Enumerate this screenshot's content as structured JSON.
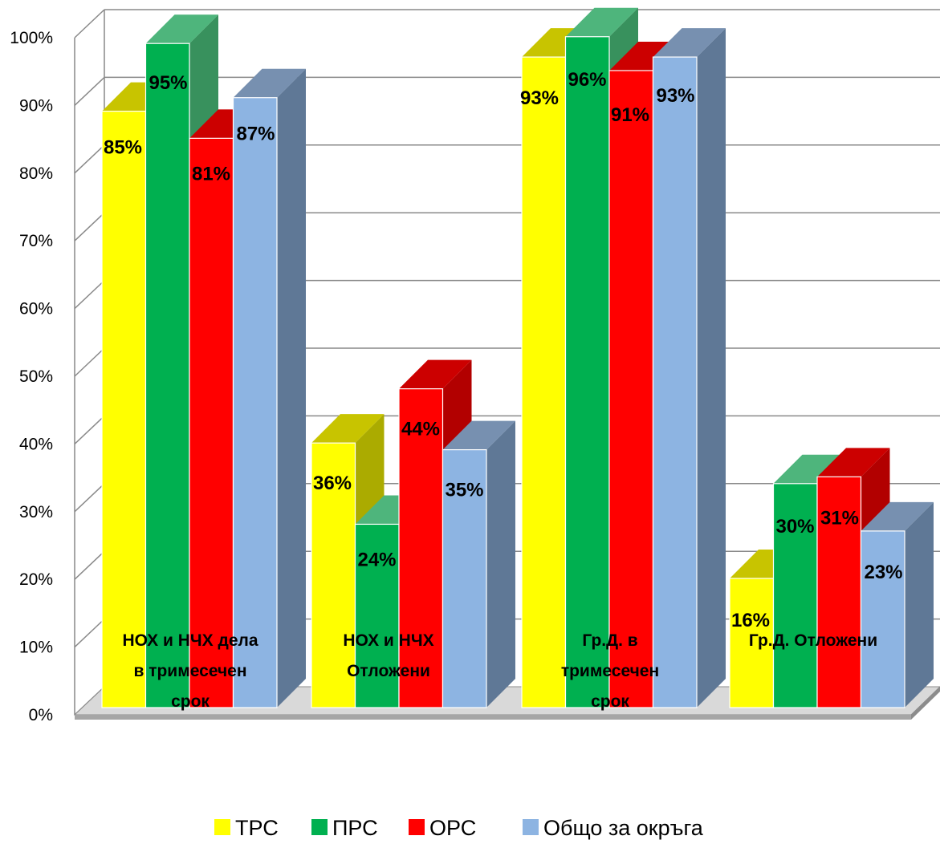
{
  "chart_data": {
    "type": "bar",
    "title": "",
    "categories": [
      [
        "НОХ и НЧХ дела",
        "в тримесечен",
        "срок"
      ],
      [
        "НОХ и НЧХ",
        "Отложени"
      ],
      [
        "Гр.Д. в",
        "тримесечен",
        "срок"
      ],
      [
        "Гр.Д. Отложени"
      ]
    ],
    "series": [
      {
        "name": "ТРС",
        "values": [
          85,
          36,
          93,
          16
        ],
        "labels": [
          "85%",
          "36%",
          "93%",
          "16%"
        ],
        "color": "#FFFF00",
        "top": "#C8C400",
        "side": "#ABAB00"
      },
      {
        "name": "ПРС",
        "values": [
          95,
          24,
          96,
          30
        ],
        "labels": [
          "95%",
          "24%",
          "96%",
          "30%"
        ],
        "color": "#00B050",
        "top": "#4EB57C",
        "side": "#38915D"
      },
      {
        "name": "ОРС",
        "values": [
          81,
          44,
          91,
          31
        ],
        "labels": [
          "81%",
          "44%",
          "91%",
          "31%"
        ],
        "color": "#FF0000",
        "top": "#CC0000",
        "side": "#B20000"
      },
      {
        "name": "Общо за окръга",
        "values": [
          87,
          35,
          93,
          23
        ],
        "labels": [
          "87%",
          "35%",
          "93%",
          "23%"
        ],
        "color": "#8DB4E2",
        "top": "#7790B0",
        "side": "#5F7896"
      }
    ],
    "ylim": [
      0,
      100
    ],
    "yticks": [
      "0%",
      "10%",
      "20%",
      "30%",
      "40%",
      "50%",
      "60%",
      "70%",
      "80%",
      "90%",
      "100%"
    ],
    "grid": true,
    "legend": "bottom"
  }
}
